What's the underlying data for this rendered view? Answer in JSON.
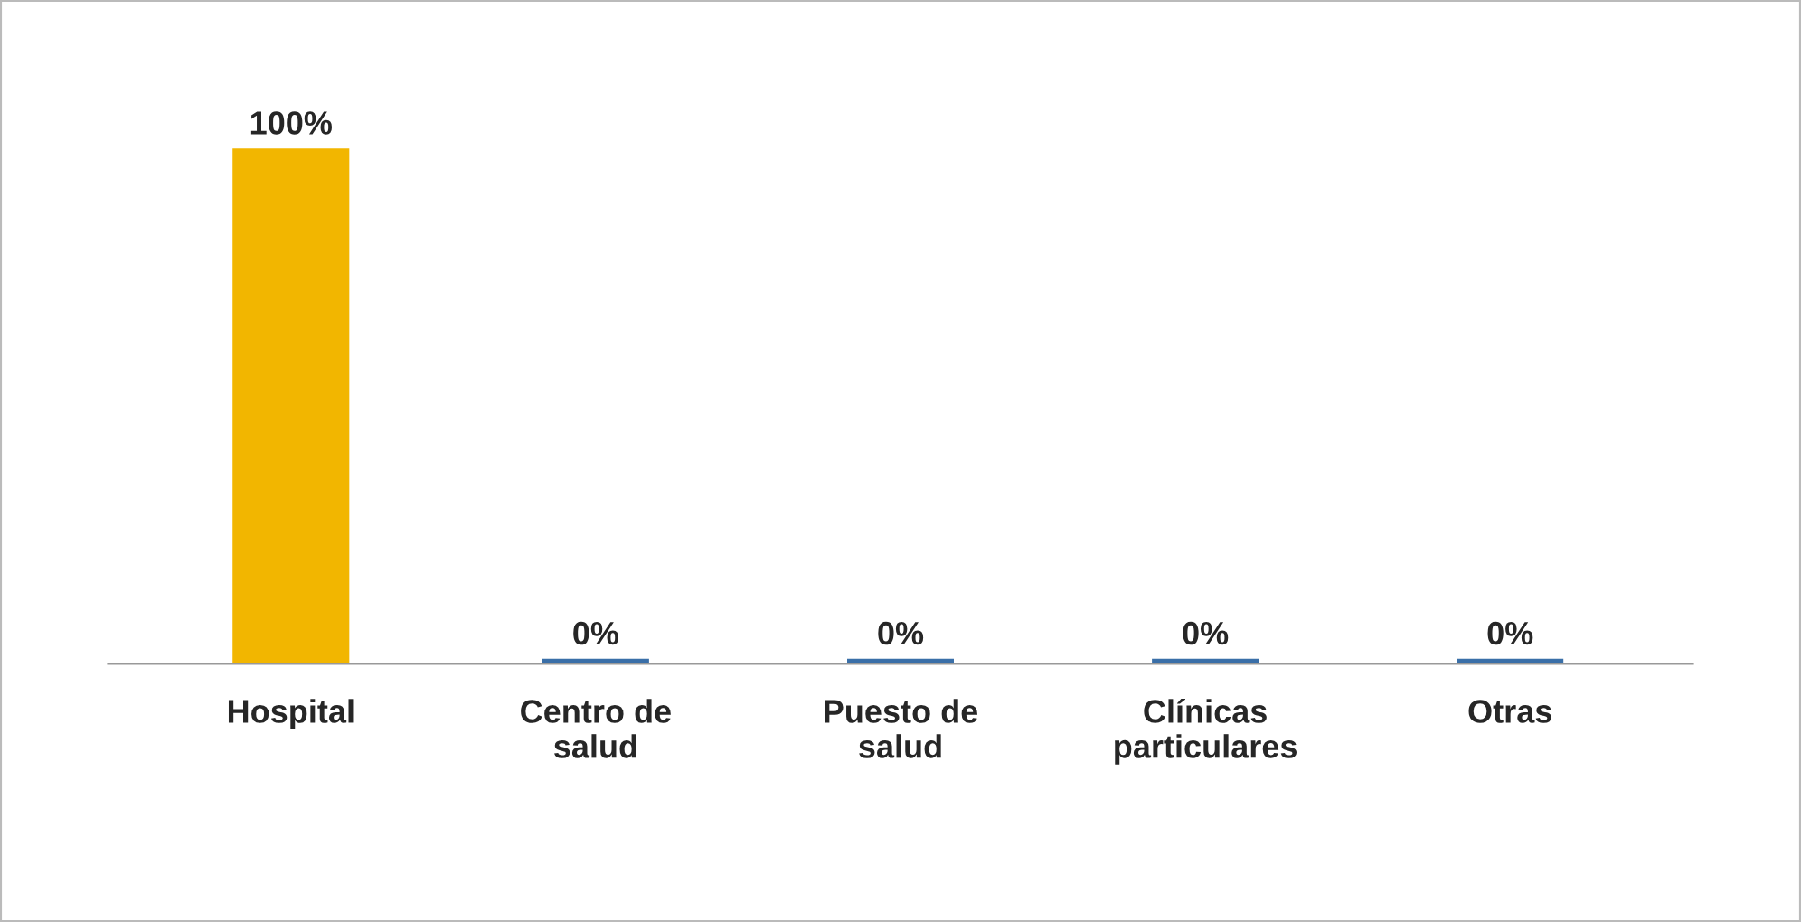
{
  "chart_data": {
    "type": "bar",
    "categories": [
      "Hospital",
      "Centro de salud",
      "Puesto de salud",
      "Clínicas particulares",
      "Otras"
    ],
    "values": [
      100,
      0,
      0,
      0,
      0
    ],
    "colors": [
      "#f2b600",
      "#3a6fa8",
      "#3a6fa8",
      "#3a6fa8",
      "#3a6fa8"
    ],
    "value_labels": [
      "100%",
      "0%",
      "0%",
      "0%",
      "0%"
    ],
    "grid": false,
    "legend": false
  }
}
